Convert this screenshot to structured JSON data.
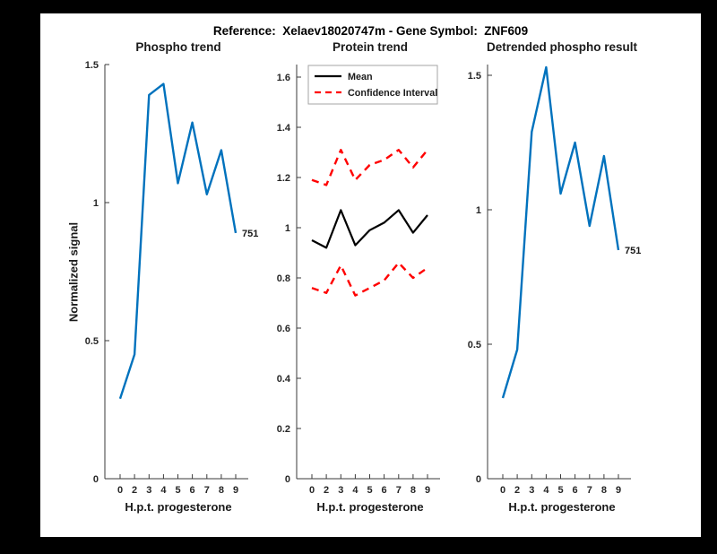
{
  "frame": {
    "background": "#000000",
    "figure_background": "#ffffff"
  },
  "figure_title": "Reference:  Xelaev18020747m - Gene Symbol:  ZNF609",
  "colors": {
    "line_blue": "#0072bd",
    "ci_red": "#ff0000",
    "mean_black": "#000000",
    "axis": "#3a3a3a",
    "tick_text": "#262626",
    "legend_border": "#a6a6a6"
  },
  "chart_data": [
    {
      "type": "line",
      "title": "Phospho trend",
      "xlabel": "H.p.t. progesterone",
      "ylabel": "Normalized signal",
      "x_tick_labels": [
        "0",
        "2",
        "3",
        "4",
        "5",
        "6",
        "7",
        "8",
        "9"
      ],
      "yticks": [
        0,
        0.5,
        1,
        1.5
      ],
      "ylim": [
        0,
        1.5
      ],
      "grid": false,
      "legend": null,
      "series": [
        {
          "name": "phospho-signal",
          "color": "#0072bd",
          "dash": false,
          "width": 2.4,
          "values": [
            0.29,
            0.45,
            1.39,
            1.43,
            1.07,
            1.29,
            1.03,
            1.19,
            0.89
          ]
        }
      ],
      "end_label": "751"
    },
    {
      "type": "line",
      "title": "Protein trend",
      "xlabel": "H.p.t. progesterone",
      "ylabel": "",
      "x_tick_labels": [
        "0",
        "2",
        "3",
        "4",
        "5",
        "6",
        "7",
        "8",
        "9"
      ],
      "yticks": [
        0,
        0.2,
        0.4,
        0.6,
        0.8,
        1,
        1.2,
        1.4,
        1.6
      ],
      "ylim": [
        0,
        1.65
      ],
      "grid": false,
      "legend": {
        "position": "top-left",
        "entries": [
          {
            "label": "Mean",
            "color": "#000000",
            "dash": false
          },
          {
            "label": "Confidence Interval",
            "color": "#ff0000",
            "dash": true
          }
        ]
      },
      "series": [
        {
          "name": "protein-mean",
          "color": "#000000",
          "dash": false,
          "width": 2.2,
          "values": [
            0.95,
            0.92,
            1.07,
            0.93,
            0.99,
            1.02,
            1.07,
            0.98,
            1.05
          ]
        },
        {
          "name": "ci-upper",
          "color": "#ff0000",
          "dash": true,
          "width": 2.4,
          "values": [
            1.19,
            1.17,
            1.31,
            1.19,
            1.25,
            1.27,
            1.31,
            1.24,
            1.31
          ]
        },
        {
          "name": "ci-lower",
          "color": "#ff0000",
          "dash": true,
          "width": 2.4,
          "values": [
            0.76,
            0.74,
            0.85,
            0.73,
            0.76,
            0.79,
            0.86,
            0.8,
            0.84
          ]
        }
      ],
      "end_label": null
    },
    {
      "type": "line",
      "title": "Detrended phospho result",
      "xlabel": "H.p.t. progesterone",
      "ylabel": "",
      "x_tick_labels": [
        "0",
        "2",
        "3",
        "4",
        "5",
        "6",
        "7",
        "8",
        "9"
      ],
      "yticks": [
        0,
        0.5,
        1,
        1.5
      ],
      "ylim": [
        0,
        1.54
      ],
      "grid": false,
      "legend": null,
      "series": [
        {
          "name": "detrended-phospho",
          "color": "#0072bd",
          "dash": false,
          "width": 2.4,
          "values": [
            0.3,
            0.48,
            1.29,
            1.53,
            1.06,
            1.25,
            0.94,
            1.2,
            0.85
          ]
        }
      ],
      "end_label": "751"
    }
  ]
}
